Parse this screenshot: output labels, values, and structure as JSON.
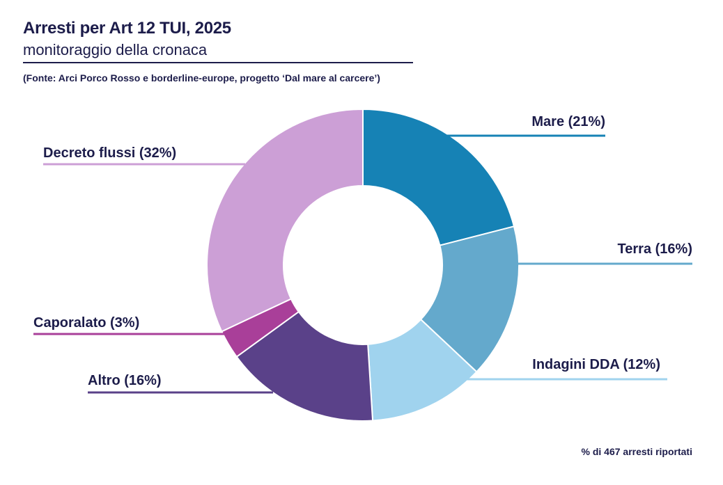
{
  "header": {
    "title": "Arresti per Art 12 TUI, 2025",
    "subtitle": "monitoraggio della cronaca",
    "source": "(Fonte: Arci Porco Rosso e borderline-europe, progetto ‘Dal mare al carcere’)"
  },
  "footnote": "% di 467 arresti riportati",
  "chart_data": {
    "type": "donut",
    "title": "Arresti per Art 12 TUI, 2025",
    "total": 467,
    "slices": [
      {
        "name": "Mare",
        "label": "Mare (21%)",
        "value": 21,
        "color": "#1682b5"
      },
      {
        "name": "Terra",
        "label": "Terra (16%)",
        "value": 16,
        "color": "#64a9cc"
      },
      {
        "name": "Indagini DDA",
        "label": "Indagini DDA (12%)",
        "value": 12,
        "color": "#a0d3ee"
      },
      {
        "name": "Altro",
        "label": "Altro (16%)",
        "value": 16,
        "color": "#5a4189"
      },
      {
        "name": "Caporalato",
        "label": "Caporalato (3%)",
        "value": 3,
        "color": "#a93f99"
      },
      {
        "name": "Decreto flussi",
        "label": "Decreto flussi (32%)",
        "value": 32,
        "color": "#cc9fd6"
      }
    ]
  }
}
